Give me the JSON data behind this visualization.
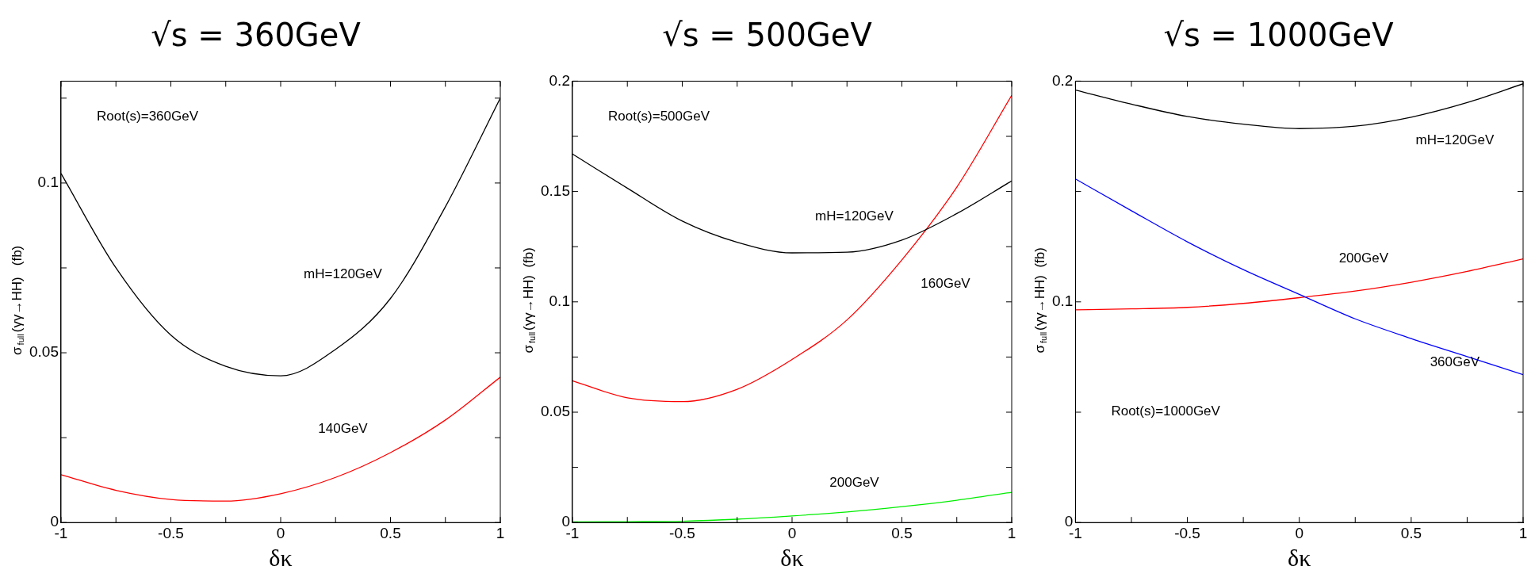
{
  "chart_data": [
    {
      "type": "line",
      "title": "√s = 360GeV",
      "xlabel": "δκ",
      "ylabel": "σ$_{full}$(γγ→HH)   (fb)",
      "legend": false,
      "marker": "none",
      "x": [
        -1,
        -0.75,
        -0.5,
        -0.25,
        0,
        0.25,
        0.5,
        0.75,
        1
      ],
      "xlim": [
        -1,
        1
      ],
      "xticks": [
        -1,
        {
          "value": -0.75,
          "label": null
        },
        -0.5,
        {
          "value": -0.25,
          "label": null
        },
        0,
        {
          "value": 0.25,
          "label": null
        },
        0.5,
        {
          "value": 0.75,
          "label": null
        },
        1
      ],
      "ylim": [
        0,
        0.13
      ],
      "yticks": [
        0,
        {
          "value": 0.025,
          "label": null
        },
        0.05,
        {
          "value": 0.075,
          "label": null
        },
        0.1,
        {
          "value": 0.125,
          "label": null
        }
      ],
      "series": [
        {
          "name": "mH=120GeV",
          "color": "#000000",
          "values": [
            0.1028,
            0.075,
            0.0552,
            0.046,
            0.0432,
            0.051,
            0.066,
            0.093,
            0.125
          ]
        },
        {
          "name": "140GeV",
          "color": "#ff0000",
          "values": [
            0.0141,
            0.0095,
            0.0068,
            0.0063,
            0.0085,
            0.0133,
            0.0206,
            0.0302,
            0.0428
          ]
        }
      ],
      "annotations": [
        "Root(s)=360GeV"
      ]
    },
    {
      "type": "line",
      "title": "√s = 500GeV",
      "xlabel": "δκ",
      "ylabel": "σ$_{full}$(γγ→HH)  (fb)",
      "legend": false,
      "marker": "none",
      "x": [
        -1,
        -0.75,
        -0.5,
        -0.25,
        0,
        0.25,
        0.5,
        0.75,
        1
      ],
      "xlim": [
        -1,
        1
      ],
      "xticks": [
        -1,
        {
          "value": -0.75,
          "label": null
        },
        -0.5,
        {
          "value": -0.25,
          "label": null
        },
        0,
        {
          "value": 0.25,
          "label": null
        },
        0.5,
        {
          "value": 0.75,
          "label": null
        },
        1
      ],
      "ylim": [
        0,
        0.2
      ],
      "yticks": [
        0,
        {
          "value": 0.025,
          "label": null
        },
        0.05,
        {
          "value": 0.075,
          "label": null
        },
        0.1,
        {
          "value": 0.125,
          "label": null
        },
        0.15,
        {
          "value": 0.175,
          "label": null
        },
        0.2
      ],
      "series": [
        {
          "name": "mH=120GeV",
          "color": "#000000",
          "values": [
            0.167,
            0.1515,
            0.1366,
            0.127,
            0.1222,
            0.1225,
            0.128,
            0.14,
            0.1548
          ]
        },
        {
          "name": "160GeV",
          "color": "#ff0000",
          "values": [
            0.0642,
            0.0565,
            0.0548,
            0.0604,
            0.0739,
            0.0918,
            0.119,
            0.152,
            0.1936
          ]
        },
        {
          "name": "200GeV",
          "color": "#00ee00",
          "values": [
            0.0003,
            0.0004,
            0.0006,
            0.0015,
            0.003,
            0.0048,
            0.0072,
            0.0101,
            0.0137
          ]
        }
      ],
      "annotations": [
        "Root(s)=500GeV"
      ]
    },
    {
      "type": "line",
      "title": "√s = 1000GeV",
      "xlabel": "δκ",
      "ylabel": "σ$_{full}$(γγ→HH)  (fb)",
      "legend": false,
      "marker": "none",
      "x": [
        -1,
        -0.75,
        -0.5,
        -0.25,
        0,
        0.25,
        0.5,
        0.75,
        1
      ],
      "xlim": [
        -1,
        1
      ],
      "xticks": [
        -1,
        {
          "value": -0.75,
          "label": null
        },
        -0.5,
        {
          "value": -0.25,
          "label": null
        },
        0,
        {
          "value": 0.25,
          "label": null
        },
        0.5,
        {
          "value": 0.75,
          "label": null
        },
        1
      ],
      "ylim": [
        0,
        0.2
      ],
      "yticks": [
        0,
        {
          "value": 0.05,
          "label": null
        },
        0.1,
        {
          "value": 0.15,
          "label": null
        },
        0.2
      ],
      "series": [
        {
          "name": "mH=120GeV",
          "color": "#000000",
          "values": [
            0.196,
            0.1896,
            0.184,
            0.1805,
            0.1785,
            0.1796,
            0.1837,
            0.1903,
            0.1988
          ]
        },
        {
          "name": "360GeV",
          "color": "#0000ff",
          "values": [
            0.1557,
            0.1413,
            0.1272,
            0.1146,
            0.1034,
            0.0923,
            0.0834,
            0.0752,
            0.067
          ]
        },
        {
          "name": "200GeV",
          "color": "#ff0000",
          "values": [
            0.0964,
            0.0968,
            0.0975,
            0.0993,
            0.1019,
            0.1049,
            0.1089,
            0.1138,
            0.1195
          ]
        }
      ],
      "annotations": [
        "Root(s)=1000GeV"
      ]
    }
  ]
}
